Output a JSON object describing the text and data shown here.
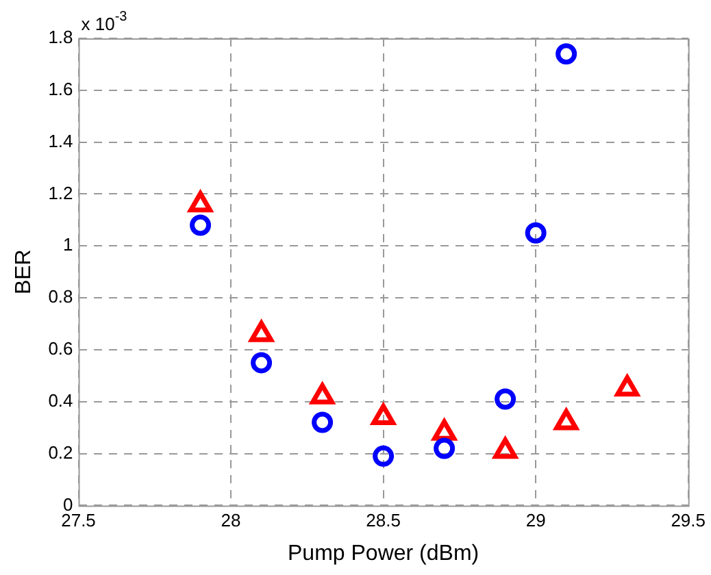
{
  "chart_data": {
    "type": "scatter",
    "xlabel": "Pump Power (dBm)",
    "ylabel": "BER",
    "annotations": [
      "x 10$^{-3}$"
    ],
    "series": [
      {
        "color": "#0000ff",
        "marker": "circle",
        "x": [
          27.9,
          28.1,
          28.3,
          28.5,
          28.7,
          28.9,
          29.0,
          29.1
        ],
        "values": [
          1.08,
          0.55,
          0.32,
          0.19,
          0.22,
          0.41,
          1.05,
          1.74
        ]
      },
      {
        "color": "#ff0000",
        "marker": "triangle",
        "x": [
          27.9,
          28.1,
          28.3,
          28.5,
          28.7,
          28.9,
          29.1,
          29.3
        ],
        "values": [
          1.16,
          0.66,
          0.42,
          0.34,
          0.28,
          0.21,
          0.32,
          0.45
        ]
      }
    ],
    "xlim": [
      27.5,
      29.5
    ],
    "xticks": [
      27.5,
      28,
      28.5,
      29,
      29.5
    ],
    "ylim": [
      0,
      1.8
    ],
    "yticks": [
      0,
      0.2,
      0.4,
      0.6,
      0.8,
      1,
      1.2,
      1.4,
      1.6,
      1.8
    ],
    "grid": true,
    "legend": false
  }
}
